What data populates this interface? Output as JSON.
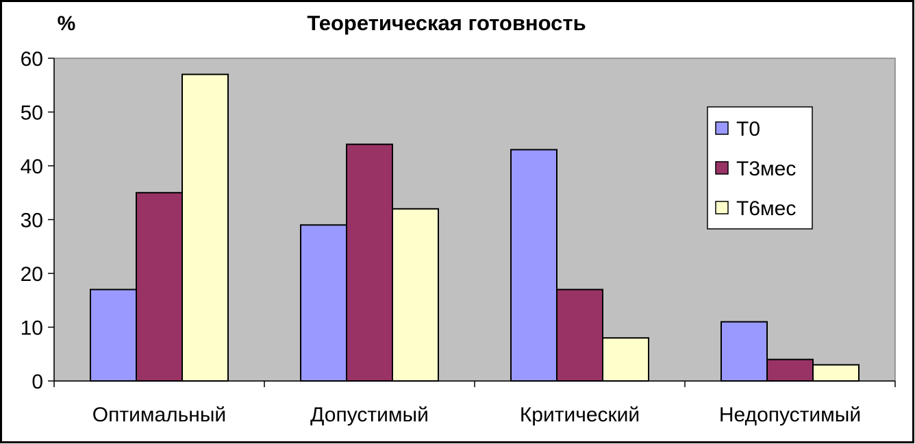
{
  "chart_data": {
    "type": "bar",
    "title": "Теоретическая готовность",
    "xlabel": "",
    "ylabel": "%",
    "ylim": [
      0,
      60
    ],
    "yticks": [
      0,
      10,
      20,
      30,
      40,
      50,
      60
    ],
    "categories": [
      "Оптимальный",
      "Допустимый",
      "Критический",
      "Недопустимый"
    ],
    "series": [
      {
        "name": "Т0",
        "values": [
          17,
          29,
          43,
          11
        ],
        "color": "#9999ff"
      },
      {
        "name": "Т3мес",
        "values": [
          35,
          44,
          17,
          4
        ],
        "color": "#993366"
      },
      {
        "name": "Т6мес",
        "values": [
          57,
          32,
          8,
          3
        ],
        "color": "#ffffcc"
      }
    ],
    "grid": false,
    "plot_background": "#c0c0c0",
    "legend_position": "right"
  }
}
